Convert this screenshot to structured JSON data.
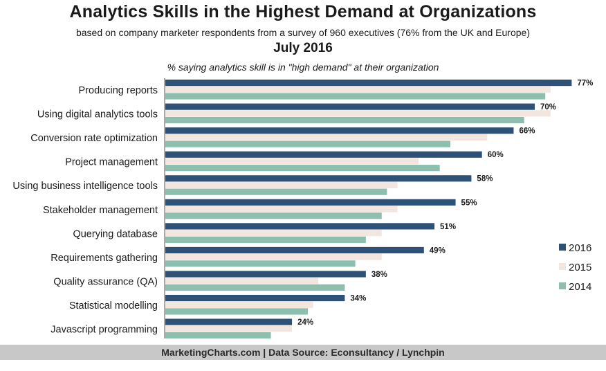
{
  "header": {
    "title": "Analytics Skills in the Highest Demand at Organizations",
    "subtitle": "based on company marketer respondents from a survey of 960 executives (76% from the UK and Europe)",
    "date": "July 2016",
    "measure": "% saying analytics skill is in \"high demand\" at their organization"
  },
  "footer": {
    "text": "MarketingCharts.com | Data Source: Econsultancy / Lynchpin"
  },
  "chart_data": {
    "type": "bar",
    "orientation": "horizontal",
    "categories": [
      "Producing reports",
      "Using digital analytics tools",
      "Conversion rate optimization",
      "Project management",
      "Using business intelligence tools",
      "Stakeholder management",
      "Querying database",
      "Requirements gathering",
      "Quality assurance (QA)",
      "Statistical modelling",
      "Javascript programming"
    ],
    "series": [
      {
        "name": "2016",
        "color": "#2e5277",
        "values": [
          77,
          70,
          66,
          60,
          58,
          55,
          51,
          49,
          38,
          34,
          24
        ],
        "labels": [
          "77%",
          "70%",
          "66%",
          "60%",
          "58%",
          "55%",
          "51%",
          "49%",
          "38%",
          "34%",
          "24%"
        ]
      },
      {
        "name": "2015",
        "color": "#f2e6de",
        "values": [
          73,
          73,
          61,
          48,
          44,
          44,
          41,
          41,
          29,
          28,
          24
        ]
      },
      {
        "name": "2014",
        "color": "#8cbfae",
        "values": [
          72,
          68,
          54,
          52,
          42,
          41,
          38,
          36,
          34,
          27,
          20
        ]
      }
    ],
    "xlim": [
      0,
      78
    ],
    "legend_position": "right",
    "grid": false
  }
}
